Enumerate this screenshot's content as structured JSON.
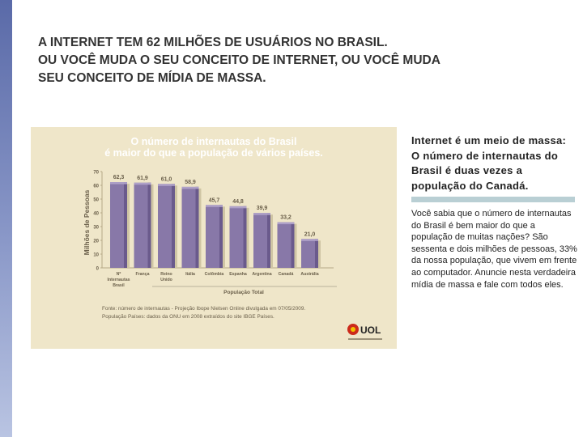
{
  "headline": {
    "line1": "A INTERNET TEM 62 MILHÕES DE USUÁRIOS NO BRASIL.",
    "line2": "OU VOCÊ MUDA O SEU CONCEITO DE INTERNET, OU VOCÊ MUDA",
    "line3": "SEU CONCEITO DE MÍDIA DE MASSA."
  },
  "side": {
    "title": "Internet é um meio de massa: O número de internautas do Brasil é duas vezes a população do Canadá.",
    "body": "Você sabia que o número de internautas do Brasil é bem maior do que a população de muitas nações? São sessenta e dois milhões de pessoas, 33% da nossa população, que vivem em frente ao computador. Anuncie nesta verdadeira mídia de massa e fale com todos eles."
  },
  "chart_data": {
    "type": "bar",
    "title": "O número de internautas do Brasil",
    "subtitle": "é maior do que a população de vários países.",
    "ylabel": "Milhões de Pessoas",
    "xlabel": "População Total",
    "ylim": [
      0,
      70
    ],
    "yticks": [
      "0",
      "10",
      "20",
      "30",
      "40",
      "50",
      "60",
      "70"
    ],
    "categories": [
      [
        "Nº",
        "Internautas",
        "Brasil"
      ],
      [
        "França"
      ],
      [
        "Reino",
        "Unido"
      ],
      [
        "Itália"
      ],
      [
        "Colômbia"
      ],
      [
        "Espanha"
      ],
      [
        "Argentina"
      ],
      [
        "Canadá"
      ],
      [
        "Austrália"
      ]
    ],
    "values": [
      62.3,
      61.9,
      61.0,
      58.9,
      45.7,
      44.8,
      39.9,
      33.2,
      21.0
    ],
    "value_labels": [
      "62,3",
      "61,9",
      "61,0",
      "58,9",
      "45,7",
      "44,8",
      "39,9",
      "33,2",
      "21,0"
    ],
    "grid": false,
    "colors": {
      "bar": "#8878a8",
      "bar_side": "#6a5a8c",
      "bar_top": "#aea0c8",
      "title": "#ffffff",
      "labels": "#6a5f4a"
    },
    "source_line1": "Fonte: número de internautas - Projeção Ibope Nielsen Online divulgada em 07/05/2009.",
    "source_line2": "População Países: dados da ONU em 2008 extraídos do site IBGE Países.",
    "logo": "UOL"
  }
}
